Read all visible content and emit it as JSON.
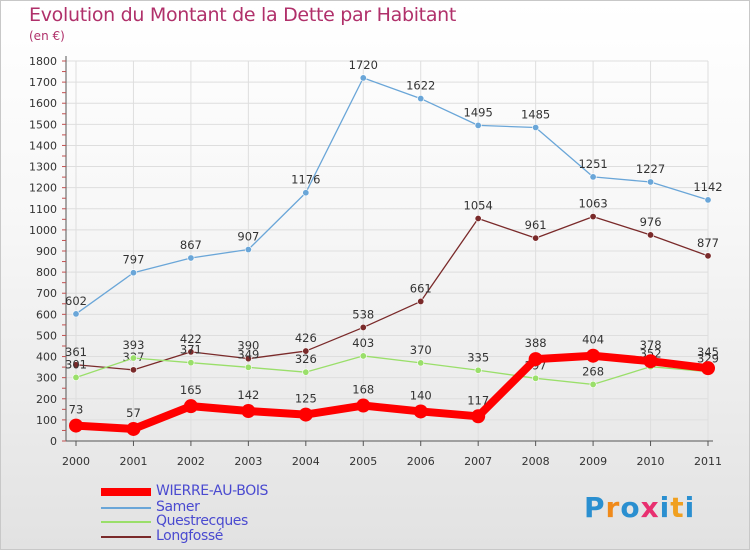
{
  "chart_data": {
    "type": "line",
    "title": "Evolution du Montant de la Dette par Habitant",
    "subtitle": "(en €)",
    "x": [
      "2000",
      "2001",
      "2002",
      "2003",
      "2004",
      "2005",
      "2006",
      "2007",
      "2008",
      "2009",
      "2010",
      "2011"
    ],
    "ylim": [
      0,
      1800
    ],
    "yticks": [
      0,
      100,
      200,
      300,
      400,
      500,
      600,
      700,
      800,
      900,
      1000,
      1100,
      1200,
      1300,
      1400,
      1500,
      1600,
      1700,
      1800
    ],
    "grid": true,
    "legend_position": "bottom-left",
    "series": [
      {
        "name": "WIERRE-AU-BOIS",
        "color": "#ff0000",
        "values": [
          73,
          57,
          165,
          142,
          125,
          168,
          140,
          117,
          388,
          404,
          378,
          345
        ]
      },
      {
        "name": "Samer",
        "color": "#6aa6d8",
        "values": [
          602,
          797,
          867,
          907,
          1176,
          1720,
          1622,
          1495,
          1485,
          1251,
          1227,
          1142
        ]
      },
      {
        "name": "Questrecques",
        "color": "#9adf6a",
        "values": [
          301,
          393,
          371,
          349,
          326,
          403,
          370,
          335,
          297,
          268,
          352,
          329
        ]
      },
      {
        "name": "Longfossé",
        "color": "#7a2a2a",
        "values": [
          361,
          337,
          422,
          390,
          426,
          538,
          661,
          1054,
          961,
          1063,
          976,
          877
        ]
      }
    ]
  },
  "logo": {
    "text": "Proxiti",
    "letters": [
      "P",
      "r",
      "o",
      "x",
      "i",
      "t",
      "i"
    ],
    "colors": [
      "#2a8fd0",
      "#f08a1a",
      "#2a8fd0",
      "#e83070",
      "#2a8fd0",
      "#f0a020",
      "#2a8fd0"
    ]
  }
}
